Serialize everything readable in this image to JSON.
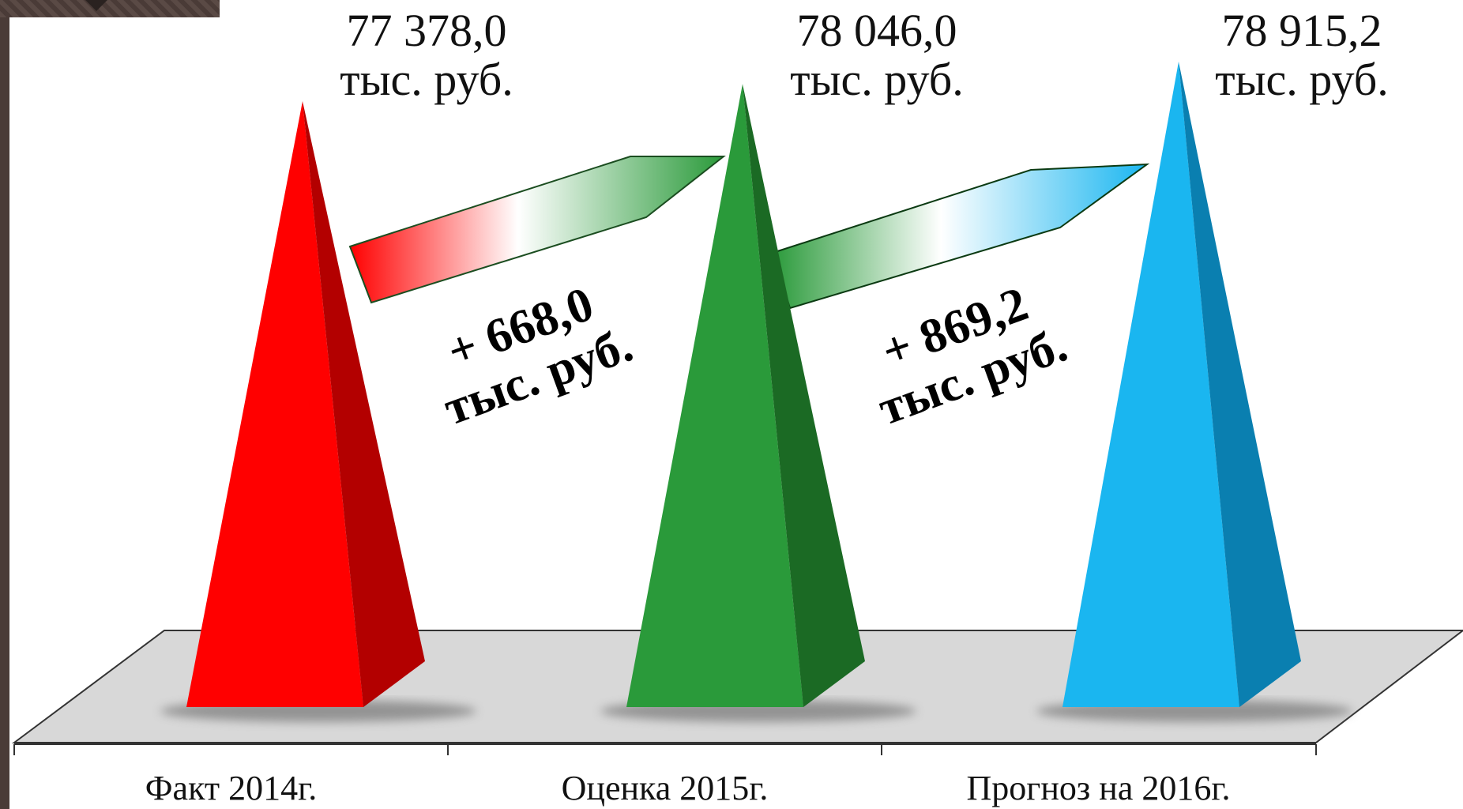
{
  "chart_data": {
    "type": "bar",
    "style": "3d-pyramid",
    "categories": [
      "Факт 2014г.",
      "Оценка 2015г.",
      "Прогноз на 2016г."
    ],
    "values": [
      77378.0,
      78046.0,
      78915.2
    ],
    "value_labels": [
      {
        "number": "77 378,0",
        "unit": "тыс. руб."
      },
      {
        "number": "78 046,0",
        "unit": "тыс. руб."
      },
      {
        "number": "78 915,2",
        "unit": "тыс. руб."
      }
    ],
    "deltas": [
      {
        "number": "+ 668,0",
        "unit": "тыс. руб."
      },
      {
        "number": "+ 869,2",
        "unit": "тыс. руб."
      }
    ],
    "colors": [
      "#ff0000",
      "#2a9a3a",
      "#1ab6f0"
    ],
    "shade_colors": [
      "#b30000",
      "#1b6a24",
      "#0a7fb0"
    ],
    "floor_color": "#d8d8d8"
  }
}
